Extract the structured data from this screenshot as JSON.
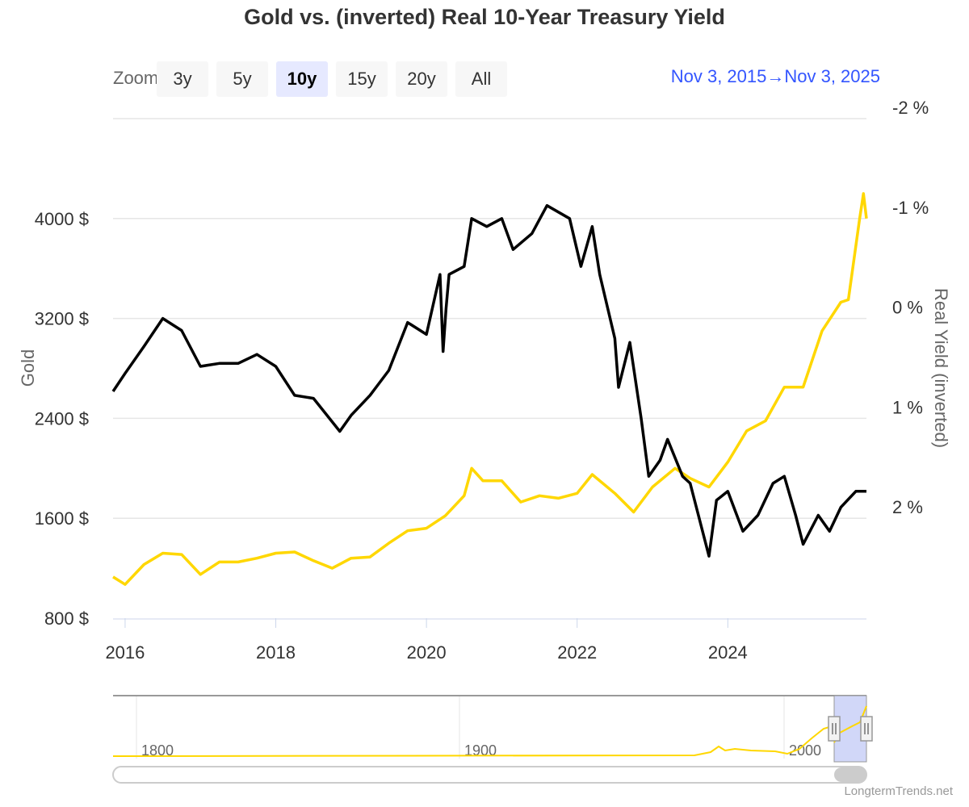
{
  "title": "Gold vs. (inverted) Real 10-Year Treasury Yield",
  "zoom": {
    "label": "Zoom",
    "buttons": [
      "3y",
      "5y",
      "10y",
      "15y",
      "20y",
      "All"
    ],
    "selected": "10y"
  },
  "range": {
    "from": "Nov 3, 2015",
    "to": "Nov 3, 2025"
  },
  "credit": "LongtermTrends.net",
  "navigator": {
    "labels": [
      "1800",
      "1900",
      "2000"
    ]
  },
  "colors": {
    "gold": "#ffd700",
    "real_yield": "#000000",
    "selection": "#ccd3f7"
  },
  "chart_data": {
    "type": "line",
    "title": "Gold vs. (inverted) Real 10-Year Treasury Yield",
    "x_ticks": [
      "2016",
      "2018",
      "2020",
      "2022",
      "2024"
    ],
    "xlim": [
      2015.84,
      2025.84
    ],
    "y_left": {
      "label": "Gold",
      "ticks": [
        "800 $",
        "1600 $",
        "2400 $",
        "3200 $",
        "4000 $"
      ],
      "range": [
        800,
        4800
      ]
    },
    "y_right": {
      "label": "Real Yield (inverted)",
      "ticks": [
        "-2 %",
        "-1 %",
        "0 %",
        "1 %",
        "2 %"
      ],
      "range": [
        -2,
        3
      ],
      "reversed": true
    },
    "grid": true,
    "series": [
      {
        "name": "Gold",
        "axis": "left",
        "color": "#ffd700",
        "x": [
          2015.84,
          2016.0,
          2016.25,
          2016.5,
          2016.75,
          2017.0,
          2017.25,
          2017.5,
          2017.75,
          2018.0,
          2018.25,
          2018.5,
          2018.75,
          2019.0,
          2019.25,
          2019.5,
          2019.75,
          2020.0,
          2020.25,
          2020.5,
          2020.6,
          2020.75,
          2021.0,
          2021.25,
          2021.5,
          2021.75,
          2022.0,
          2022.2,
          2022.5,
          2022.75,
          2023.0,
          2023.3,
          2023.5,
          2023.75,
          2024.0,
          2024.25,
          2024.5,
          2024.75,
          2025.0,
          2025.25,
          2025.5,
          2025.6,
          2025.75,
          2025.8,
          2025.84
        ],
        "y": [
          1130,
          1070,
          1230,
          1320,
          1310,
          1150,
          1250,
          1250,
          1280,
          1320,
          1330,
          1260,
          1200,
          1280,
          1290,
          1400,
          1500,
          1520,
          1620,
          1780,
          2000,
          1900,
          1900,
          1730,
          1780,
          1760,
          1800,
          1950,
          1800,
          1650,
          1850,
          2000,
          1920,
          1850,
          2050,
          2300,
          2380,
          2650,
          2650,
          3100,
          3330,
          3350,
          4000,
          4200,
          4000
        ]
      },
      {
        "name": "Real Yield (inverted)",
        "axis": "right",
        "color": "#000000",
        "x": [
          2015.84,
          2016.0,
          2016.25,
          2016.5,
          2016.75,
          2017.0,
          2017.25,
          2017.5,
          2017.75,
          2018.0,
          2018.25,
          2018.5,
          2018.85,
          2019.0,
          2019.25,
          2019.5,
          2019.75,
          2020.0,
          2020.18,
          2020.22,
          2020.26,
          2020.3,
          2020.5,
          2020.6,
          2020.8,
          2021.0,
          2021.15,
          2021.4,
          2021.6,
          2021.9,
          2022.05,
          2022.2,
          2022.3,
          2022.5,
          2022.55,
          2022.7,
          2022.85,
          2022.95,
          2023.1,
          2023.2,
          2023.4,
          2023.5,
          2023.75,
          2023.85,
          2024.0,
          2024.2,
          2024.4,
          2024.6,
          2024.75,
          2024.9,
          2025.0,
          2025.2,
          2025.35,
          2025.5,
          2025.7,
          2025.84
        ],
        "y": [
          0.73,
          0.55,
          0.28,
          0.0,
          0.12,
          0.48,
          0.45,
          0.45,
          0.36,
          0.48,
          0.77,
          0.8,
          1.13,
          0.97,
          0.77,
          0.52,
          0.04,
          0.16,
          -0.44,
          0.33,
          -0.1,
          -0.44,
          -0.52,
          -1.0,
          -0.92,
          -1.0,
          -0.69,
          -0.85,
          -1.13,
          -1.0,
          -0.52,
          -0.92,
          -0.44,
          0.2,
          0.69,
          0.24,
          1.0,
          1.58,
          1.42,
          1.21,
          1.58,
          1.65,
          2.38,
          1.82,
          1.73,
          2.13,
          1.97,
          1.65,
          1.58,
          1.97,
          2.26,
          1.97,
          2.13,
          1.89,
          1.73,
          1.73
        ]
      }
    ]
  }
}
